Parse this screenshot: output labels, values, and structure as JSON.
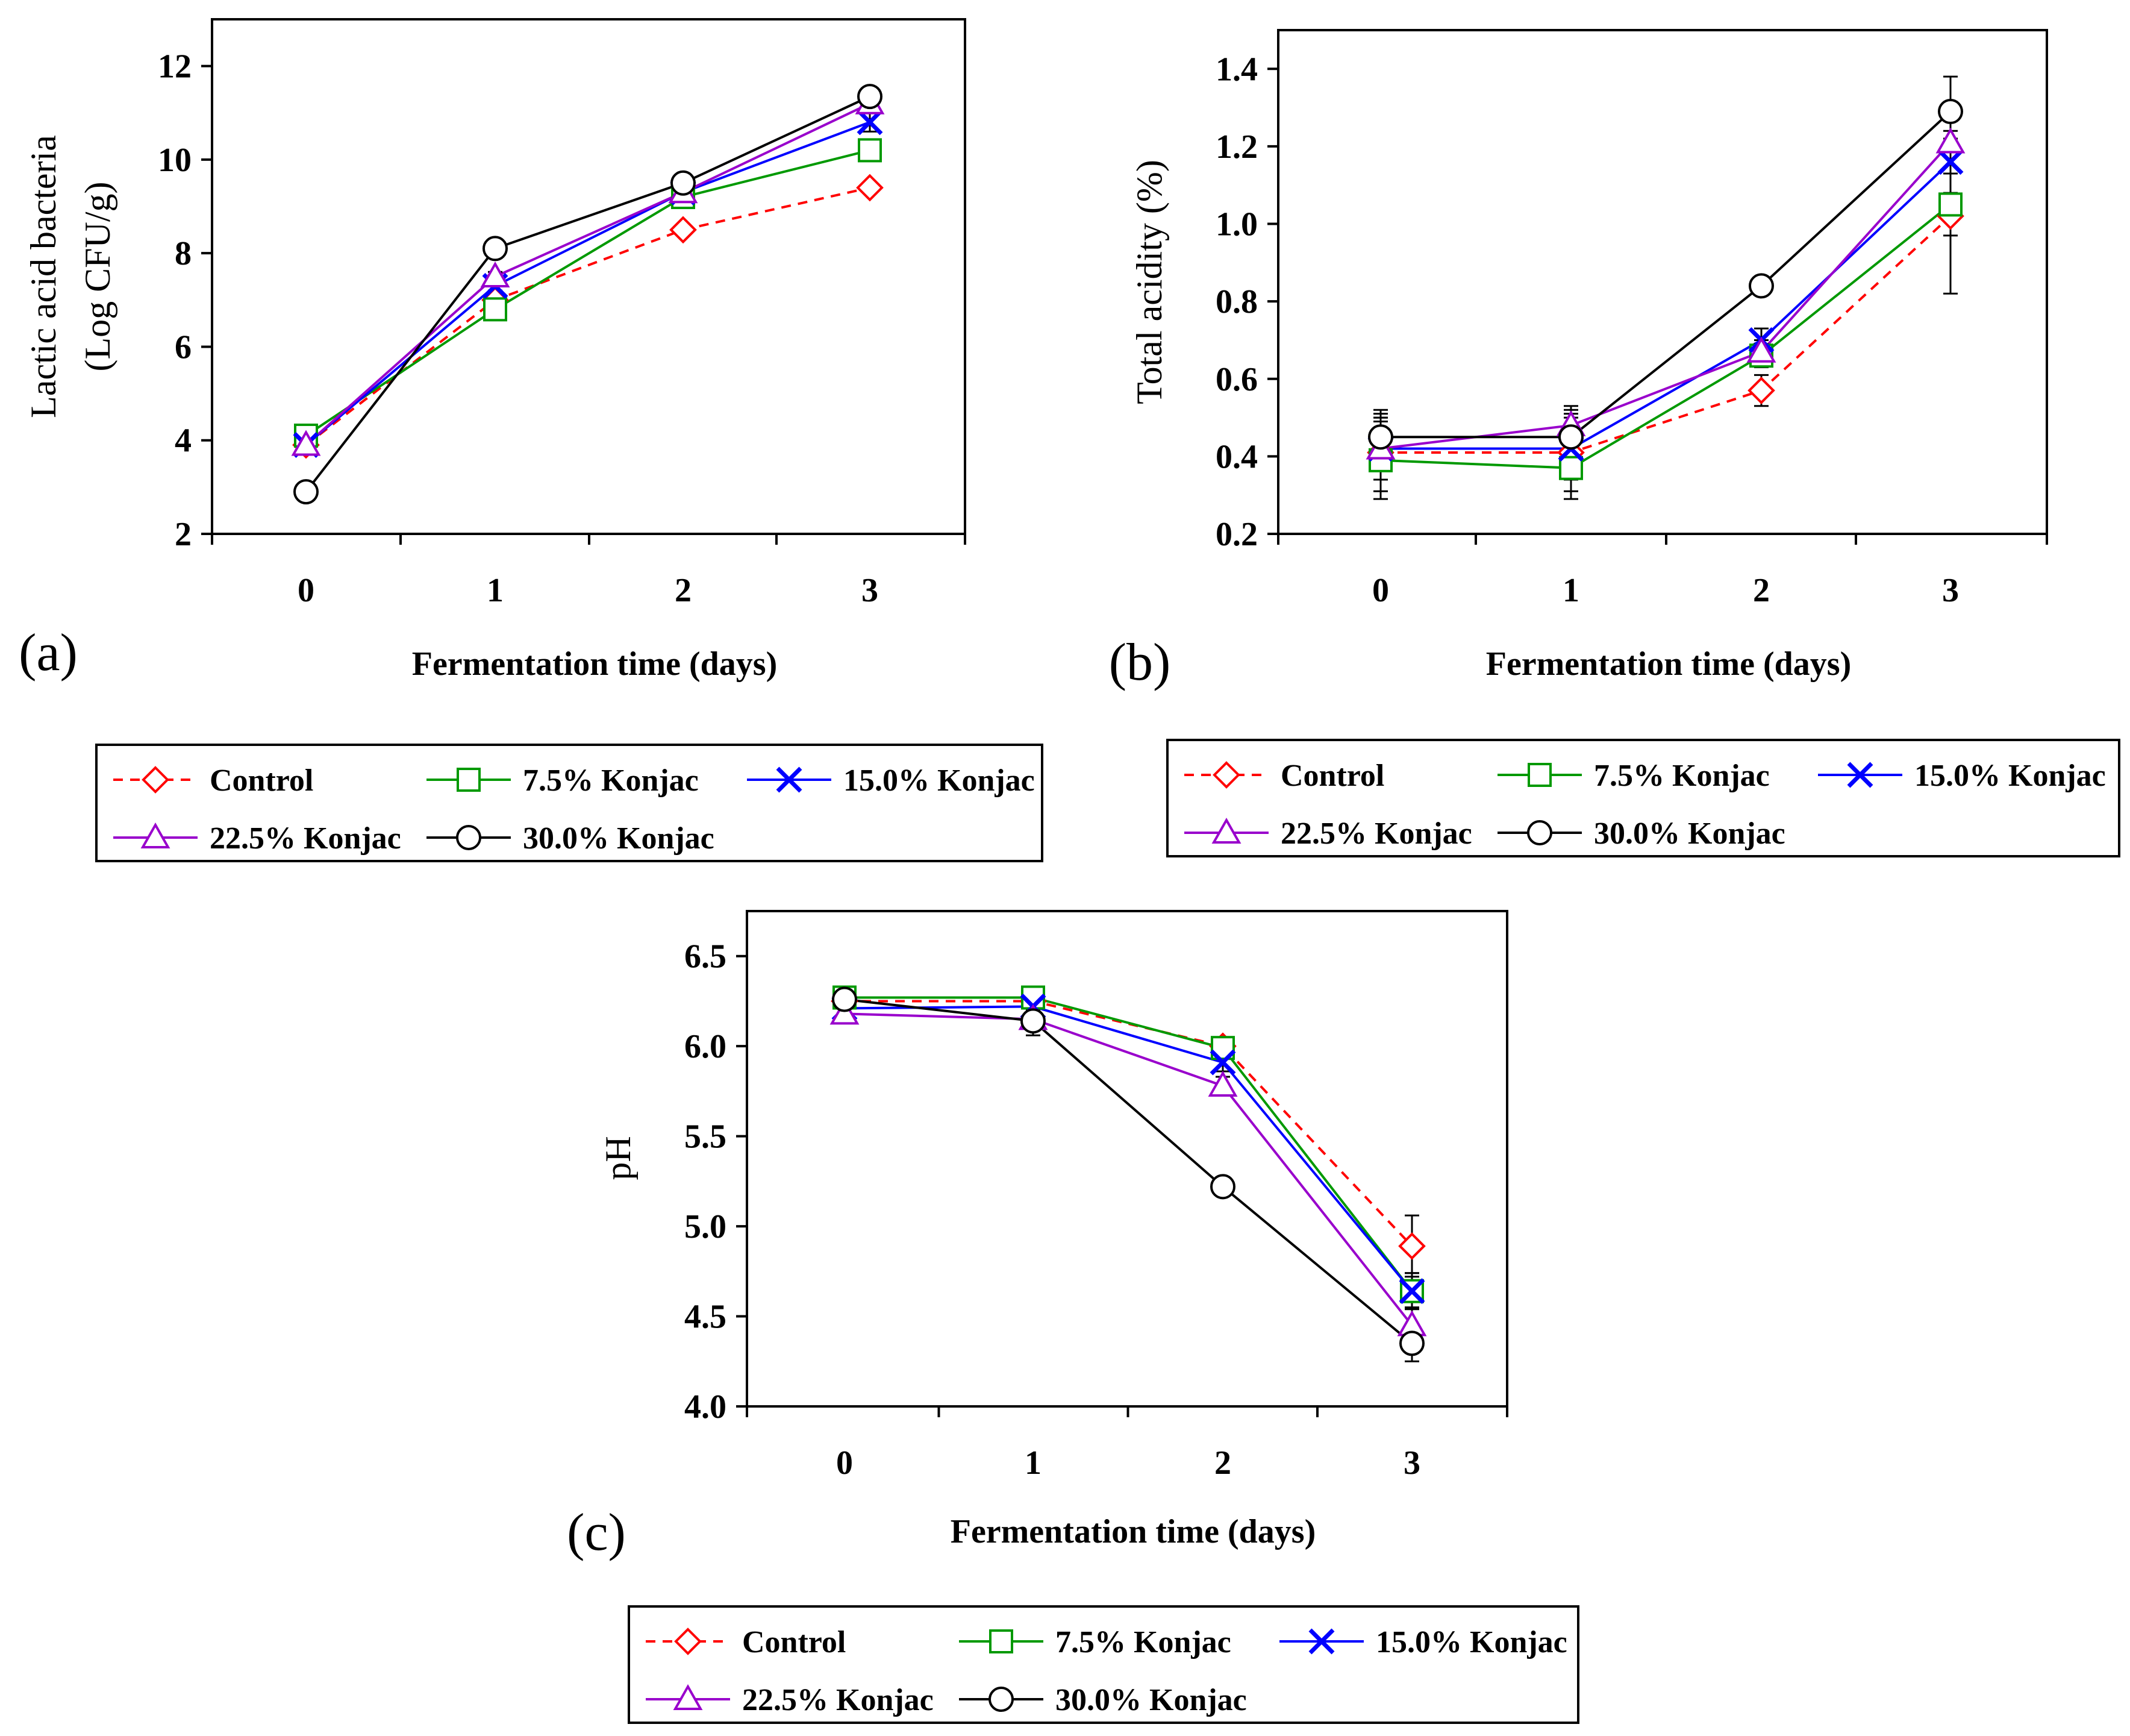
{
  "series_styles": [
    {
      "name": "Control",
      "color": "#ff0000",
      "marker": "diamond",
      "dashed": true
    },
    {
      "name": "7.5% Konjac",
      "color": "#009900",
      "marker": "square",
      "dashed": false
    },
    {
      "name": "15.0% Konjac",
      "color": "#0000ff",
      "marker": "x",
      "dashed": false
    },
    {
      "name": "22.5% Konjac",
      "color": "#9900cc",
      "marker": "triangle",
      "dashed": false
    },
    {
      "name": "30.0% Konjac",
      "color": "#000000",
      "marker": "circle",
      "dashed": false
    }
  ],
  "chart_data": [
    {
      "type": "line",
      "panel": "(a)",
      "title": "",
      "xlabel": "Fermentation time (days)",
      "ylabel_lines": [
        "Lactic acid bacteria",
        "(Log CFU/g)"
      ],
      "x": [
        0,
        1,
        2,
        3
      ],
      "xticks": [
        "0",
        "1",
        "2",
        "3"
      ],
      "ylim": [
        2,
        13
      ],
      "yticks": [
        "2",
        "4",
        "6",
        "8",
        "10",
        "12"
      ],
      "series": [
        {
          "name": "Control",
          "values": [
            3.9,
            7.0,
            8.5,
            9.4
          ],
          "errors": [
            0.1,
            0.1,
            0.1,
            0.1
          ]
        },
        {
          "name": "7.5% Konjac",
          "values": [
            4.1,
            6.8,
            9.2,
            10.2
          ],
          "errors": [
            0.1,
            0.1,
            0.2,
            0.2
          ]
        },
        {
          "name": "15.0% Konjac",
          "values": [
            3.9,
            7.3,
            9.3,
            10.8
          ],
          "errors": [
            0.1,
            0.1,
            0.2,
            0.2
          ]
        },
        {
          "name": "22.5% Konjac",
          "values": [
            3.9,
            7.5,
            9.3,
            11.2
          ],
          "errors": [
            0.1,
            0.1,
            0.2,
            0.2
          ]
        },
        {
          "name": "30.0% Konjac",
          "values": [
            2.9,
            8.1,
            9.5,
            11.35
          ],
          "errors": [
            0.1,
            0.1,
            0.2,
            0.1
          ]
        }
      ]
    },
    {
      "type": "line",
      "panel": "(b)",
      "title": "",
      "xlabel": "Fermentation time (days)",
      "ylabel_lines": [
        "Total acidity (%)"
      ],
      "x": [
        0,
        1,
        2,
        3
      ],
      "xticks": [
        "0",
        "1",
        "2",
        "3"
      ],
      "ylim": [
        0.2,
        1.5
      ],
      "yticks": [
        "0.2",
        "0.4",
        "0.6",
        "0.8",
        "1.0",
        "1.2",
        "1.4"
      ],
      "series": [
        {
          "name": "Control",
          "values": [
            0.41,
            0.41,
            0.57,
            1.02
          ],
          "errors": [
            0.1,
            0.1,
            0.04,
            0.2
          ]
        },
        {
          "name": "7.5% Konjac",
          "values": [
            0.39,
            0.37,
            0.66,
            1.05
          ],
          "errors": [
            0.1,
            0.08,
            0.03,
            0.08
          ]
        },
        {
          "name": "15.0% Konjac",
          "values": [
            0.42,
            0.42,
            0.7,
            1.16
          ],
          "errors": [
            0.08,
            0.08,
            0.03,
            0.08
          ]
        },
        {
          "name": "22.5% Konjac",
          "values": [
            0.42,
            0.48,
            0.67,
            1.21
          ],
          "errors": [
            0.08,
            0.05,
            0.03,
            0.08
          ]
        },
        {
          "name": "30.0% Konjac",
          "values": [
            0.45,
            0.45,
            0.84,
            1.29
          ],
          "errors": [
            0.07,
            0.07,
            0.02,
            0.09
          ]
        }
      ]
    },
    {
      "type": "line",
      "panel": "(c)",
      "title": "",
      "xlabel": "Fermentation time (days)",
      "ylabel_lines": [
        "pH"
      ],
      "x": [
        0,
        1,
        2,
        3
      ],
      "xticks": [
        "0",
        "1",
        "2",
        "3"
      ],
      "ylim": [
        4.0,
        6.75
      ],
      "yticks": [
        "4.0",
        "4.5",
        "5.0",
        "5.5",
        "6.0",
        "6.5"
      ],
      "series": [
        {
          "name": "Control",
          "values": [
            6.25,
            6.25,
            6.0,
            4.89
          ],
          "errors": [
            0.03,
            0.05,
            0.05,
            0.17
          ]
        },
        {
          "name": "7.5% Konjac",
          "values": [
            6.27,
            6.27,
            5.99,
            4.64
          ],
          "errors": [
            0.03,
            0.05,
            0.05,
            0.1
          ]
        },
        {
          "name": "15.0% Konjac",
          "values": [
            6.21,
            6.22,
            5.91,
            4.64
          ],
          "errors": [
            0.03,
            0.05,
            0.05,
            0.1
          ]
        },
        {
          "name": "22.5% Konjac",
          "values": [
            6.18,
            6.15,
            5.78,
            4.45
          ],
          "errors": [
            0.03,
            0.05,
            0.05,
            0.1
          ]
        },
        {
          "name": "30.0% Konjac",
          "values": [
            6.26,
            6.14,
            5.22,
            4.35
          ],
          "errors": [
            0.03,
            0.08,
            0.03,
            0.1
          ]
        }
      ]
    }
  ]
}
